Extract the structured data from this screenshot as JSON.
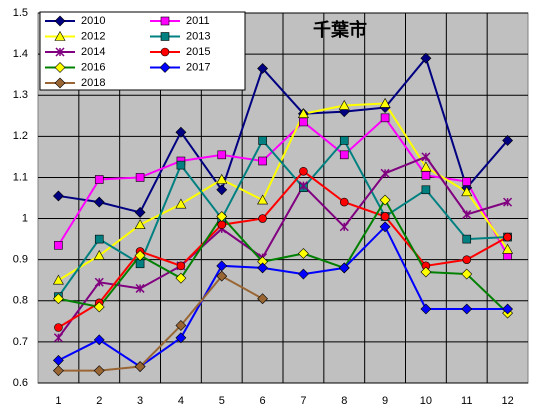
{
  "chart_data": {
    "type": "line",
    "title": "千葉市",
    "categories": [
      "1",
      "2",
      "3",
      "4",
      "5",
      "6",
      "7",
      "8",
      "9",
      "10",
      "11",
      "12"
    ],
    "series": [
      {
        "name": "2010",
        "color": "#000080",
        "marker": "diamond",
        "values": [
          1.055,
          1.04,
          1.015,
          1.21,
          1.07,
          1.365,
          1.255,
          1.26,
          1.27,
          1.39,
          1.075,
          1.19
        ]
      },
      {
        "name": "2011",
        "color": "#ff00ff",
        "marker": "square",
        "values": [
          0.935,
          1.095,
          1.1,
          1.14,
          1.155,
          1.14,
          1.235,
          1.155,
          1.245,
          1.105,
          1.09,
          0.91
        ]
      },
      {
        "name": "2012",
        "color": "#ffff00",
        "marker": "triangle",
        "values": [
          0.85,
          0.91,
          0.985,
          1.035,
          1.095,
          1.045,
          1.255,
          1.275,
          1.28,
          1.125,
          1.065,
          0.925
        ]
      },
      {
        "name": "2013",
        "color": "#008080",
        "marker": "square",
        "values": [
          0.81,
          0.95,
          0.89,
          1.13,
          1.0,
          1.19,
          1.075,
          1.19,
          1.005,
          1.07,
          0.95,
          0.955
        ]
      },
      {
        "name": "2014",
        "color": "#800080",
        "marker": "x",
        "values": [
          0.71,
          0.845,
          0.83,
          0.885,
          0.975,
          0.905,
          1.08,
          0.98,
          1.11,
          1.15,
          1.01,
          1.04
        ]
      },
      {
        "name": "2015",
        "color": "#ff0000",
        "marker": "circle",
        "values": [
          0.735,
          0.795,
          0.92,
          0.885,
          0.985,
          1.0,
          1.115,
          1.04,
          1.005,
          0.885,
          0.9,
          0.955
        ]
      },
      {
        "name": "2016",
        "color": "#008000",
        "marker": "diamond",
        "marker_color": "#ffff00",
        "values": [
          0.805,
          0.785,
          0.91,
          0.855,
          1.005,
          0.895,
          0.915,
          0.88,
          1.045,
          0.87,
          0.865,
          0.77
        ]
      },
      {
        "name": "2017",
        "color": "#0000ff",
        "marker": "diamond",
        "values": [
          0.655,
          0.705,
          0.64,
          0.71,
          0.885,
          0.88,
          0.865,
          0.88,
          0.98,
          0.78,
          0.78,
          0.78
        ]
      },
      {
        "name": "2018",
        "color": "#996633",
        "marker": "diamond",
        "values": [
          0.63,
          0.63,
          0.64,
          0.74,
          0.86,
          0.805,
          null,
          null,
          null,
          null,
          null,
          null
        ]
      }
    ],
    "ylim": [
      0.6,
      1.5
    ],
    "yticks": [
      0.6,
      0.7,
      0.8,
      0.9,
      1,
      1.1,
      1.2,
      1.3,
      1.4,
      1.5
    ],
    "grid": true,
    "legend": "upper left"
  }
}
